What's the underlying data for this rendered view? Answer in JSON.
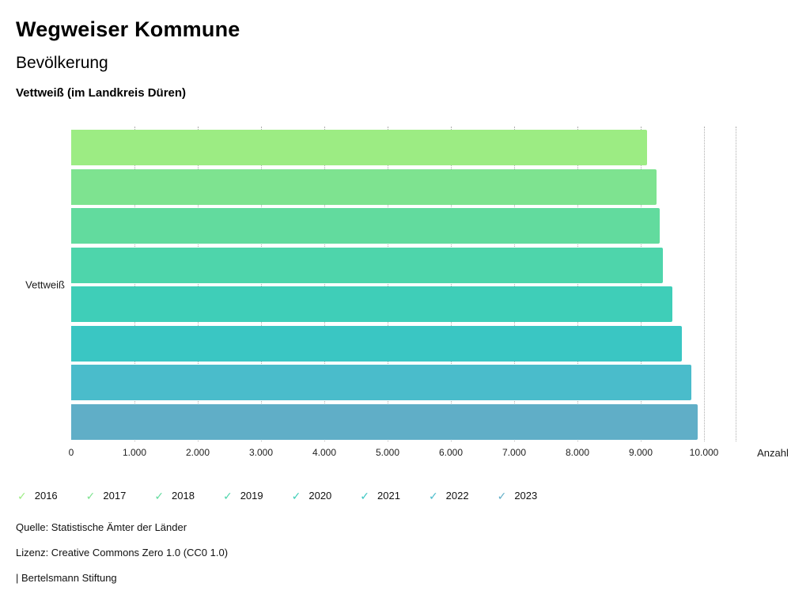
{
  "header": {
    "title": "Wegweiser Kommune",
    "subtitle": "Bevölkerung",
    "region": "Vettweiß (im Landkreis Düren)"
  },
  "chart_data": {
    "type": "bar",
    "orientation": "horizontal",
    "category": "Vettweiß",
    "xlabel": "Anzahl",
    "xlim": [
      0,
      10500
    ],
    "grid": "dotted-vertical",
    "legend_position": "bottom",
    "x_ticks": [
      {
        "label": "0",
        "value": 0
      },
      {
        "label": "1.000",
        "value": 1000
      },
      {
        "label": "2.000",
        "value": 2000
      },
      {
        "label": "3.000",
        "value": 3000
      },
      {
        "label": "4.000",
        "value": 4000
      },
      {
        "label": "5.000",
        "value": 5000
      },
      {
        "label": "6.000",
        "value": 6000
      },
      {
        "label": "7.000",
        "value": 7000
      },
      {
        "label": "8.000",
        "value": 8000
      },
      {
        "label": "9.000",
        "value": 9000
      },
      {
        "label": "10.000",
        "value": 10000
      }
    ],
    "gridline_values": [
      1000,
      2000,
      3000,
      4000,
      5000,
      6000,
      7000,
      8000,
      9000,
      10000,
      10500
    ],
    "series": [
      {
        "name": "2016",
        "value": 9100,
        "color": "#9cec83"
      },
      {
        "name": "2017",
        "value": 9250,
        "color": "#7ee390"
      },
      {
        "name": "2018",
        "value": 9300,
        "color": "#62db9e"
      },
      {
        "name": "2019",
        "value": 9350,
        "color": "#4ed5ab"
      },
      {
        "name": "2020",
        "value": 9500,
        "color": "#3fceb8"
      },
      {
        "name": "2021",
        "value": 9650,
        "color": "#3ac6c3"
      },
      {
        "name": "2022",
        "value": 9800,
        "color": "#4abccb"
      },
      {
        "name": "2023",
        "value": 9900,
        "color": "#60aec7"
      }
    ]
  },
  "legend": {
    "check_icon": "✓"
  },
  "footer": {
    "source": "Quelle: Statistische Ämter der Länder",
    "license": "Lizenz: Creative Commons Zero 1.0 (CC0 1.0)",
    "attribution": "| Bertelsmann Stiftung"
  }
}
